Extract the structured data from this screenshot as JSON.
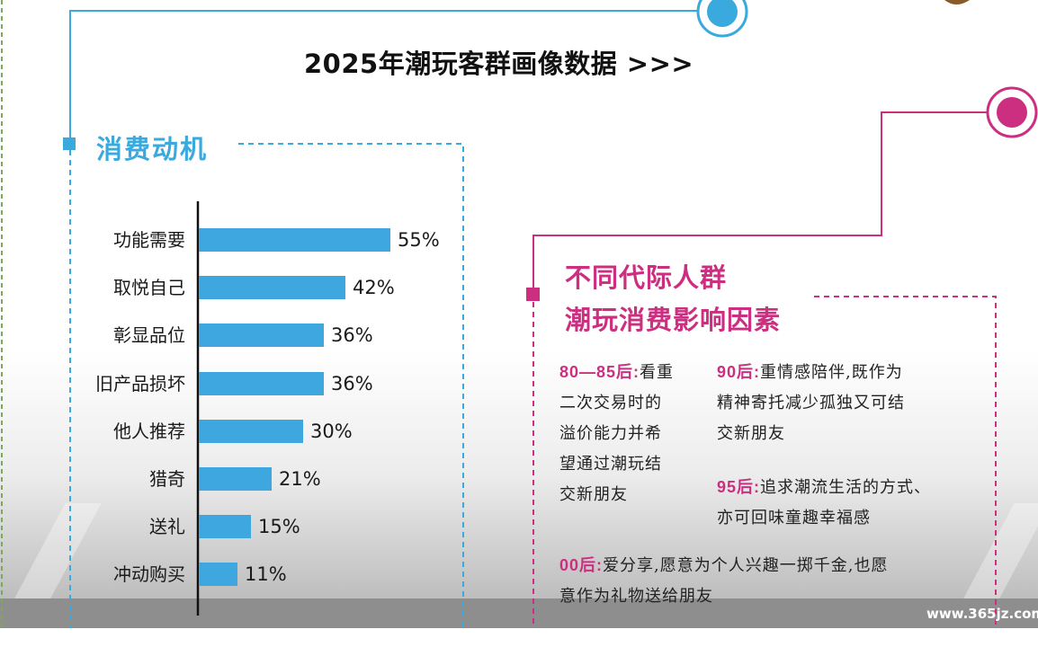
{
  "title": "2025年潮玩客群画像数据 >>>",
  "motivation": {
    "heading": "消费动机"
  },
  "chart_data": {
    "type": "bar",
    "orientation": "horizontal",
    "title": "消费动机",
    "categories": [
      "功能需要",
      "取悦自己",
      "彰显品位",
      "旧产品损坏",
      "他人推荐",
      "猎奇",
      "送礼",
      "冲动购买"
    ],
    "values": [
      55,
      42,
      36,
      36,
      30,
      21,
      15,
      11
    ],
    "value_labels": [
      "55%",
      "42%",
      "36%",
      "36%",
      "30%",
      "21%",
      "15%",
      "11%"
    ],
    "unit": "%",
    "xlim": [
      0,
      55
    ],
    "color": "#3fa7e0"
  },
  "factors": {
    "heading_line1": "不同代际人群",
    "heading_line2": "潮玩消费影响因素",
    "g8085_label": "80—85后:",
    "g8085_line1": "看重",
    "g8085_line2": "二次交易时的",
    "g8085_line3": "溢价能力并希",
    "g8085_line4": "望通过潮玩结",
    "g8085_line5": "交新朋友",
    "g90_label": "90后:",
    "g90_line1": "重情感陪伴,既作为",
    "g90_line2": "精神寄托减少孤独又可结",
    "g90_line3": "交新朋友",
    "g95_label": "95后:",
    "g95_line1": "追求潮流生活的方式、",
    "g95_line2": "亦可回味童趣幸福感",
    "g00_label": "00后:",
    "g00_line1": "爱分享,愿意为个人兴趣一掷千金,也愿",
    "g00_line2": "意作为礼物送给朋友"
  },
  "watermark": "www.365jz.com",
  "colors": {
    "blue": "#3aa9de",
    "bar": "#3fa7e0",
    "pink": "#cc2f80",
    "gray": "#8e8e8e"
  }
}
